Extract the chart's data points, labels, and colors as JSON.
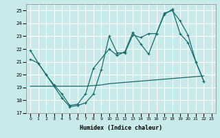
{
  "xlabel": "Humidex (Indice chaleur)",
  "bg_color": "#c9eaea",
  "grid_color": "#ffffff",
  "line_color": "#1a6b6b",
  "xlim": [
    -0.5,
    23.5
  ],
  "ylim": [
    17,
    25.5
  ],
  "xticks": [
    0,
    1,
    2,
    3,
    4,
    5,
    6,
    7,
    8,
    9,
    10,
    11,
    12,
    13,
    14,
    15,
    16,
    17,
    18,
    19,
    20,
    21,
    22,
    23
  ],
  "yticks": [
    17,
    18,
    19,
    20,
    21,
    22,
    23,
    24,
    25
  ],
  "series1_x": [
    0,
    1,
    2,
    3,
    4,
    5,
    6,
    7,
    8,
    9,
    10,
    11,
    12,
    13,
    14,
    15,
    16,
    17,
    18,
    19,
    20,
    21,
    22
  ],
  "series1_y": [
    21.9,
    20.9,
    20.0,
    19.1,
    18.2,
    17.5,
    17.6,
    17.8,
    18.5,
    20.4,
    23.0,
    21.7,
    21.7,
    23.1,
    22.9,
    23.2,
    23.2,
    24.7,
    25.1,
    23.2,
    22.5,
    21.0,
    19.5
  ],
  "series2_x": [
    0,
    1,
    2,
    3,
    4,
    5,
    6,
    7,
    8,
    10,
    11,
    12,
    13,
    14,
    15,
    16,
    17,
    18,
    19,
    20,
    21,
    22
  ],
  "series2_y": [
    21.2,
    20.9,
    20.0,
    19.2,
    18.5,
    17.6,
    17.7,
    18.5,
    20.5,
    22.0,
    21.5,
    21.8,
    23.3,
    22.4,
    21.6,
    23.2,
    24.8,
    25.0,
    24.2,
    23.1,
    21.0,
    19.5
  ],
  "series3_x": [
    0,
    1,
    2,
    3,
    4,
    5,
    6,
    7,
    8,
    9,
    10,
    11,
    12,
    13,
    14,
    15,
    16,
    17,
    18,
    19,
    20,
    21,
    22
  ],
  "series3_y": [
    19.1,
    19.1,
    19.1,
    19.1,
    19.1,
    19.1,
    19.1,
    19.1,
    19.15,
    19.2,
    19.3,
    19.35,
    19.4,
    19.45,
    19.5,
    19.55,
    19.6,
    19.65,
    19.7,
    19.75,
    19.8,
    19.85,
    19.9
  ]
}
